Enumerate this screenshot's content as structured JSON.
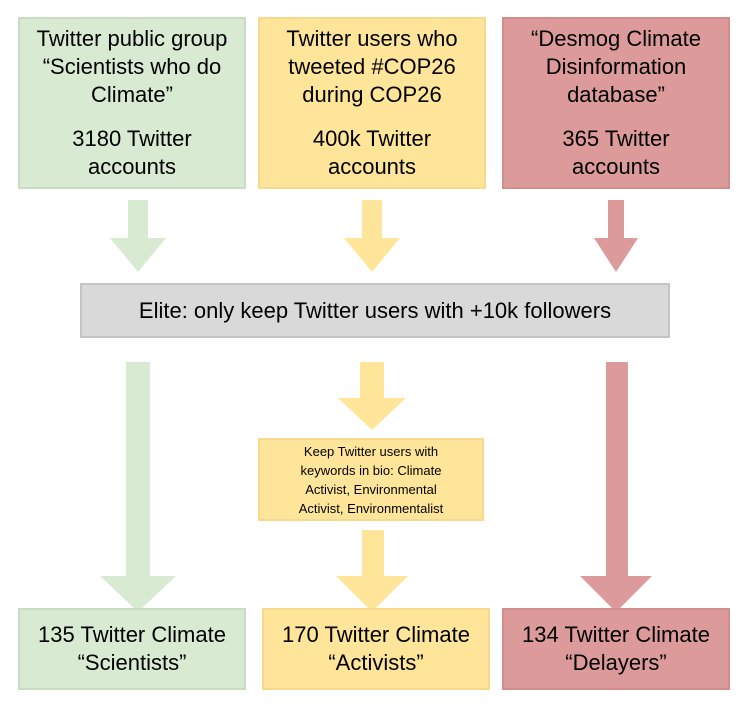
{
  "sources": {
    "scientists": {
      "title_lines": [
        "Twitter public group",
        "“Scientists who do",
        "Climate”"
      ],
      "count_lines": [
        "3180 Twitter",
        "accounts"
      ]
    },
    "activists": {
      "title_lines": [
        "Twitter users who",
        "tweeted #COP26",
        "during COP26"
      ],
      "count_lines": [
        "400k Twitter",
        "accounts"
      ]
    },
    "delayers": {
      "title_lines": [
        "“Desmog Climate",
        "Disinformation",
        "database”"
      ],
      "count_lines": [
        "365 Twitter",
        "accounts"
      ]
    }
  },
  "filter": {
    "label": "Elite: only keep Twitter users with +10k followers"
  },
  "keyword_filter": {
    "lines": [
      "Keep Twitter users with",
      "keywords in bio: Climate",
      "Activist, Environmental",
      "Activist, Environmentalist"
    ]
  },
  "results": {
    "scientists": [
      "135 Twitter Climate",
      "“Scientists”"
    ],
    "activists": [
      "170 Twitter Climate",
      "“Activists”"
    ],
    "delayers": [
      "134 Twitter Climate",
      "“Delayers”"
    ]
  },
  "colors": {
    "green": "#d9ead3",
    "yellow": "#ffe599",
    "red": "#dd9a9a",
    "grey": "#d9d9d9"
  }
}
